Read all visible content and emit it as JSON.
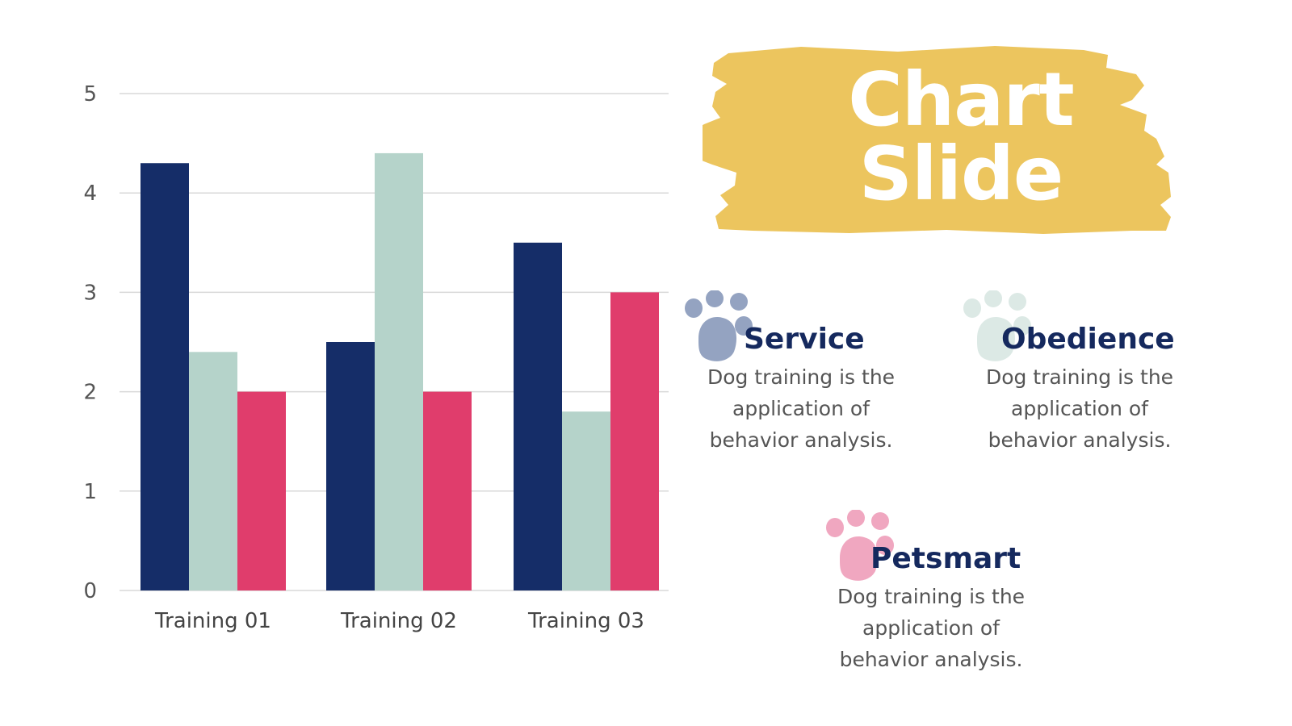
{
  "chart_data": {
    "type": "bar",
    "categories": [
      "Training 01",
      "Training 02",
      "Training 03"
    ],
    "series": [
      {
        "values": [
          4.3,
          2.5,
          3.5
        ],
        "color": "#152d68"
      },
      {
        "values": [
          2.4,
          4.4,
          1.8
        ],
        "color": "#b5d3ca"
      },
      {
        "values": [
          2.0,
          2.0,
          3.0
        ],
        "color": "#e03d6c"
      }
    ],
    "y_ticks": [
      "0",
      "1",
      "2",
      "3",
      "4",
      "5"
    ],
    "ylim": [
      0,
      5
    ],
    "grid": true,
    "legend": "none"
  },
  "title": {
    "line1": "Chart",
    "line2": "Slide",
    "color": "#ffffff",
    "brush_color": "#ecc55e"
  },
  "items": [
    {
      "heading": "Service",
      "description": [
        "Dog training is the",
        "application of",
        "behavior analysis."
      ],
      "paw_color": "#94a3c1"
    },
    {
      "heading": "Obedience",
      "description": [
        "Dog training is the",
        "application of",
        "behavior analysis."
      ],
      "paw_color": "#dce9e5"
    },
    {
      "heading": "Petsmart",
      "description": [
        "Dog training is the",
        "application of",
        "behavior analysis."
      ],
      "paw_color": "#f0a7c0"
    }
  ],
  "heading_color": "#15295e",
  "icons": {
    "paw": "paw-print-icon"
  }
}
